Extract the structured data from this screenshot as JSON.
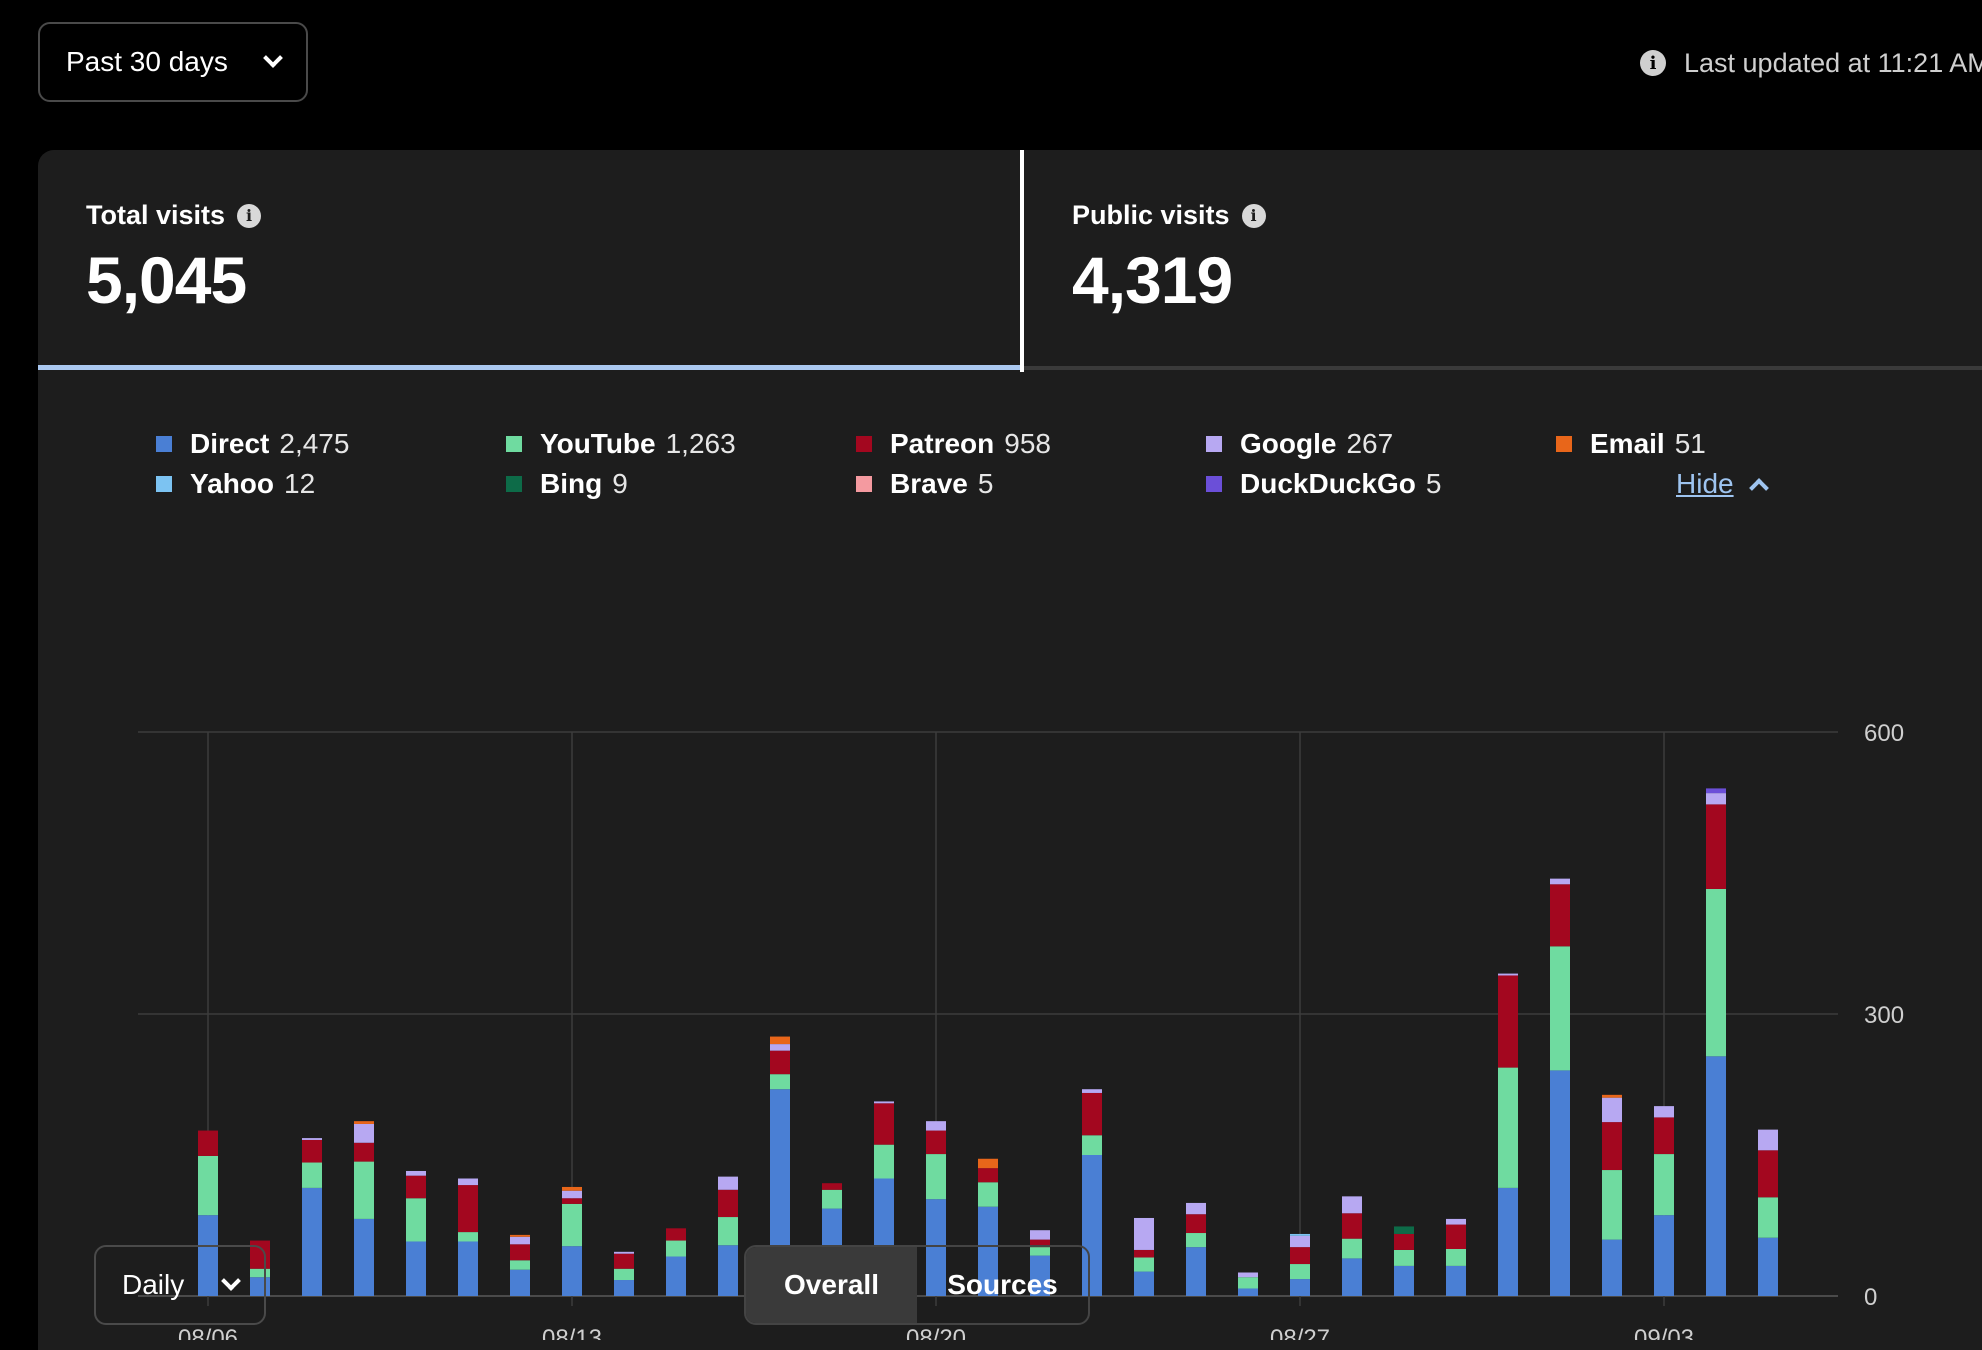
{
  "header": {
    "range_label": "Past 30 days",
    "updated_text": "Last updated at 11:21 AM"
  },
  "stats": {
    "total": {
      "label": "Total visits",
      "value": "5,045"
    },
    "public": {
      "label": "Public visits",
      "value": "4,319"
    }
  },
  "legend": {
    "items": [
      {
        "name": "Direct",
        "count": "2,475",
        "color": "#4a7fd4"
      },
      {
        "name": "YouTube",
        "count": "1,263",
        "color": "#6fdba0"
      },
      {
        "name": "Patreon",
        "count": "958",
        "color": "#a3071f"
      },
      {
        "name": "Google",
        "count": "267",
        "color": "#b7a8f2"
      },
      {
        "name": "Email",
        "count": "51",
        "color": "#e8661a"
      },
      {
        "name": "Yahoo",
        "count": "12",
        "color": "#7cc3f2"
      },
      {
        "name": "Bing",
        "count": "9",
        "color": "#0d6b48"
      },
      {
        "name": "Brave",
        "count": "5",
        "color": "#f49aa0"
      },
      {
        "name": "DuckDuckGo",
        "count": "5",
        "color": "#6b4fd8"
      }
    ],
    "hide_label": "Hide"
  },
  "chart_data": {
    "type": "bar",
    "stacked": true,
    "ylim": [
      0,
      600
    ],
    "yticks": [
      "600",
      "300",
      "0"
    ],
    "xticks": [
      "08/06",
      "08/13",
      "08/20",
      "08/27",
      "09/03"
    ],
    "categories": [
      "08/06",
      "08/07",
      "08/08",
      "08/09",
      "08/10",
      "08/11",
      "08/12",
      "08/13",
      "08/14",
      "08/15",
      "08/16",
      "08/17",
      "08/18",
      "08/19",
      "08/20",
      "08/21",
      "08/22",
      "08/23",
      "08/24",
      "08/25",
      "08/26",
      "08/27",
      "08/28",
      "08/29",
      "08/30",
      "08/31",
      "09/01",
      "09/02",
      "09/03",
      "09/04",
      "09/05",
      "09/06"
    ],
    "series": [
      {
        "name": "Direct",
        "color": "#4a7fd4",
        "values": [
          86,
          20,
          115,
          82,
          58,
          58,
          28,
          53,
          17,
          42,
          54,
          220,
          93,
          125,
          103,
          95,
          43,
          150,
          26,
          52,
          8,
          18,
          40,
          32,
          32,
          115,
          240,
          60,
          86,
          255,
          62,
          0
        ]
      },
      {
        "name": "YouTube",
        "color": "#6fdba0",
        "values": [
          63,
          9,
          27,
          61,
          46,
          10,
          10,
          45,
          12,
          17,
          30,
          16,
          20,
          36,
          48,
          26,
          9,
          21,
          15,
          15,
          12,
          16,
          21,
          17,
          18,
          128,
          132,
          74,
          65,
          178,
          43,
          0
        ]
      },
      {
        "name": "Patreon",
        "color": "#a3071f",
        "values": [
          27,
          30,
          24,
          20,
          24,
          50,
          17,
          6,
          16,
          13,
          29,
          25,
          7,
          44,
          25,
          15,
          8,
          45,
          8,
          20,
          0,
          18,
          27,
          17,
          26,
          98,
          66,
          51,
          39,
          90,
          50,
          0
        ]
      },
      {
        "name": "Google",
        "color": "#b7a8f2",
        "values": [
          0,
          0,
          2,
          20,
          5,
          7,
          8,
          8,
          2,
          0,
          14,
          7,
          0,
          2,
          10,
          0,
          10,
          4,
          34,
          12,
          5,
          12,
          18,
          0,
          6,
          2,
          6,
          26,
          12,
          12,
          22,
          0
        ]
      },
      {
        "name": "Email",
        "color": "#e8661a",
        "values": [
          0,
          0,
          0,
          3,
          0,
          0,
          2,
          4,
          0,
          0,
          0,
          8,
          0,
          0,
          0,
          10,
          0,
          0,
          0,
          0,
          0,
          0,
          0,
          0,
          0,
          0,
          0,
          3,
          0,
          0,
          0,
          0
        ]
      },
      {
        "name": "Yahoo",
        "color": "#7cc3f2",
        "values": [
          0,
          0,
          0,
          0,
          0,
          0,
          0,
          0,
          0,
          0,
          0,
          0,
          0,
          0,
          0,
          0,
          0,
          0,
          0,
          0,
          0,
          2,
          0,
          0,
          0,
          0,
          0,
          0,
          0,
          0,
          0,
          0
        ]
      },
      {
        "name": "Bing",
        "color": "#0d6b48",
        "values": [
          0,
          0,
          0,
          0,
          0,
          0,
          0,
          0,
          0,
          0,
          0,
          0,
          0,
          0,
          0,
          0,
          0,
          0,
          0,
          0,
          0,
          0,
          0,
          8,
          0,
          0,
          0,
          0,
          0,
          0,
          0,
          0
        ]
      },
      {
        "name": "Brave",
        "color": "#f49aa0",
        "values": [
          0,
          0,
          0,
          0,
          0,
          0,
          0,
          0,
          0,
          0,
          0,
          0,
          0,
          0,
          0,
          0,
          0,
          0,
          0,
          0,
          0,
          0,
          0,
          0,
          0,
          0,
          0,
          0,
          0,
          0,
          0,
          0
        ]
      },
      {
        "name": "DuckDuckGo",
        "color": "#6b4fd8",
        "values": [
          0,
          0,
          0,
          0,
          0,
          0,
          0,
          0,
          0,
          0,
          0,
          0,
          0,
          0,
          0,
          0,
          0,
          0,
          0,
          0,
          0,
          0,
          0,
          0,
          0,
          0,
          0,
          0,
          0,
          5,
          0,
          0
        ]
      }
    ]
  },
  "controls": {
    "interval_label": "Daily",
    "tabs": [
      "Overall",
      "Sources"
    ],
    "active_tab": "Overall"
  }
}
